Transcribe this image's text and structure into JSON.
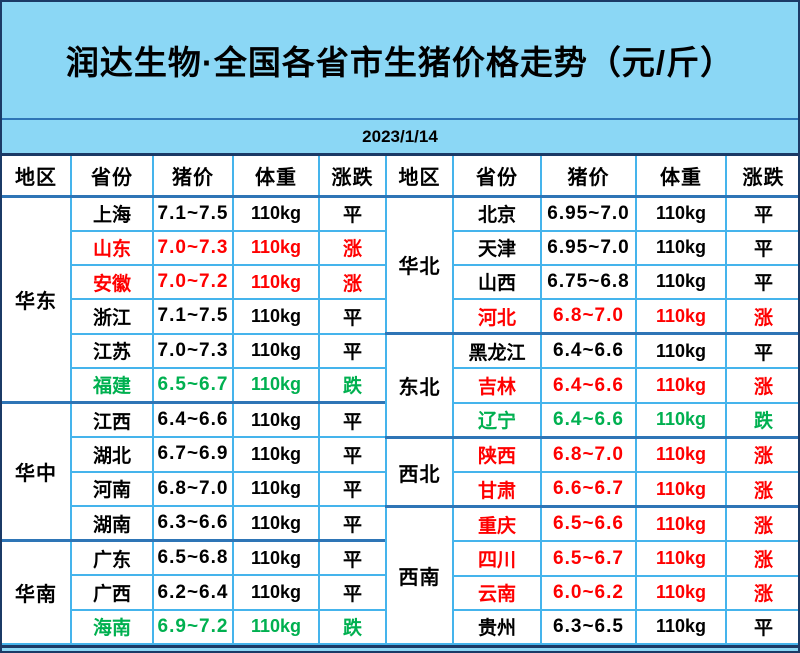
{
  "title": "润达生物·全国各省市生猪价格走势（元/斤）",
  "date": "2023/1/14",
  "columns": [
    "地区",
    "省份",
    "猪价",
    "体重",
    "涨跌"
  ],
  "palette": {
    "page_blue": "#8bd7f5",
    "grid_blue": "#45b4ec",
    "separator_steel_blue": "#2e75b6",
    "frame_navy": "#1b3a66",
    "text_flat": "#000000",
    "text_up": "#ff0000",
    "text_down": "#00b050"
  },
  "tables": [
    {
      "side": "left",
      "groups": [
        {
          "region": "华东",
          "rows": [
            {
              "province": "上海",
              "price": "7.1~7.5",
              "weight": "110kg",
              "trend": "平",
              "status": "flat"
            },
            {
              "province": "山东",
              "price": "7.0~7.3",
              "weight": "110kg",
              "trend": "涨",
              "status": "up"
            },
            {
              "province": "安徽",
              "price": "7.0~7.2",
              "weight": "110kg",
              "trend": "涨",
              "status": "up"
            },
            {
              "province": "浙江",
              "price": "7.1~7.5",
              "weight": "110kg",
              "trend": "平",
              "status": "flat"
            },
            {
              "province": "江苏",
              "price": "7.0~7.3",
              "weight": "110kg",
              "trend": "平",
              "status": "flat"
            },
            {
              "province": "福建",
              "price": "6.5~6.7",
              "weight": "110kg",
              "trend": "跌",
              "status": "down"
            }
          ]
        },
        {
          "region": "华中",
          "rows": [
            {
              "province": "江西",
              "price": "6.4~6.6",
              "weight": "110kg",
              "trend": "平",
              "status": "flat"
            },
            {
              "province": "湖北",
              "price": "6.7~6.9",
              "weight": "110kg",
              "trend": "平",
              "status": "flat"
            },
            {
              "province": "河南",
              "price": "6.8~7.0",
              "weight": "110kg",
              "trend": "平",
              "status": "flat"
            },
            {
              "province": "湖南",
              "price": "6.3~6.6",
              "weight": "110kg",
              "trend": "平",
              "status": "flat"
            }
          ]
        },
        {
          "region": "华南",
          "rows": [
            {
              "province": "广东",
              "price": "6.5~6.8",
              "weight": "110kg",
              "trend": "平",
              "status": "flat"
            },
            {
              "province": "广西",
              "price": "6.2~6.4",
              "weight": "110kg",
              "trend": "平",
              "status": "flat"
            },
            {
              "province": "海南",
              "price": "6.9~7.2",
              "weight": "110kg",
              "trend": "跌",
              "status": "down"
            }
          ]
        }
      ]
    },
    {
      "side": "right",
      "groups": [
        {
          "region": "华北",
          "rows": [
            {
              "province": "北京",
              "price": "6.95~7.0",
              "weight": "110kg",
              "trend": "平",
              "status": "flat"
            },
            {
              "province": "天津",
              "price": "6.95~7.0",
              "weight": "110kg",
              "trend": "平",
              "status": "flat"
            },
            {
              "province": "山西",
              "price": "6.75~6.8",
              "weight": "110kg",
              "trend": "平",
              "status": "flat"
            },
            {
              "province": "河北",
              "price": "6.8~7.0",
              "weight": "110kg",
              "trend": "涨",
              "status": "up"
            }
          ]
        },
        {
          "region": "东北",
          "rows": [
            {
              "province": "黑龙江",
              "price": "6.4~6.6",
              "weight": "110kg",
              "trend": "平",
              "status": "flat"
            },
            {
              "province": "吉林",
              "price": "6.4~6.6",
              "weight": "110kg",
              "trend": "涨",
              "status": "up"
            },
            {
              "province": "辽宁",
              "price": "6.4~6.6",
              "weight": "110kg",
              "trend": "跌",
              "status": "down"
            }
          ]
        },
        {
          "region": "西北",
          "rows": [
            {
              "province": "陕西",
              "price": "6.8~7.0",
              "weight": "110kg",
              "trend": "涨",
              "status": "up"
            },
            {
              "province": "甘肃",
              "price": "6.6~6.7",
              "weight": "110kg",
              "trend": "涨",
              "status": "up"
            }
          ]
        },
        {
          "region": "西南",
          "rows": [
            {
              "province": "重庆",
              "price": "6.5~6.6",
              "weight": "110kg",
              "trend": "涨",
              "status": "up"
            },
            {
              "province": "四川",
              "price": "6.5~6.7",
              "weight": "110kg",
              "trend": "涨",
              "status": "up"
            },
            {
              "province": "云南",
              "price": "6.0~6.2",
              "weight": "110kg",
              "trend": "涨",
              "status": "up"
            },
            {
              "province": "贵州",
              "price": "6.3~6.5",
              "weight": "110kg",
              "trend": "平",
              "status": "flat"
            }
          ]
        }
      ]
    }
  ]
}
